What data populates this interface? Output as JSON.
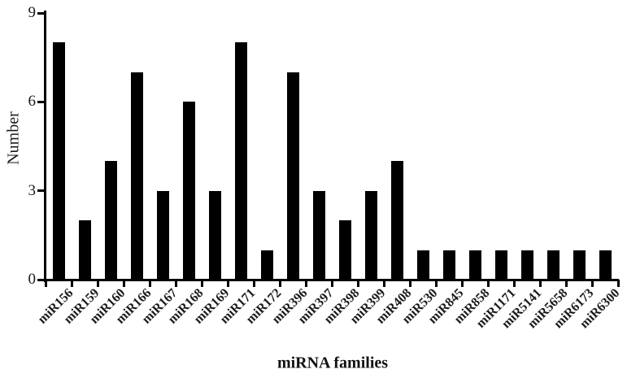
{
  "chart_data": {
    "type": "bar",
    "title": "",
    "categories": [
      "miR156",
      "miR159",
      "miR160",
      "miR166",
      "miR167",
      "miR168",
      "miR169",
      "miR171",
      "miR172",
      "miR396",
      "miR397",
      "miR398",
      "miR399",
      "miR408",
      "miR530",
      "miR845",
      "miR858",
      "miR1171",
      "miR5141",
      "miR5658",
      "miR6173",
      "miR6300"
    ],
    "values": [
      8,
      2,
      4,
      7,
      3,
      6,
      3,
      8,
      1,
      7,
      3,
      2,
      3,
      4,
      1,
      1,
      1,
      1,
      1,
      1,
      1,
      1
    ],
    "xlabel": "miRNA families",
    "ylabel": "Number",
    "ylim": [
      0,
      9
    ],
    "yticks": [
      0,
      3,
      6,
      9
    ],
    "bar_color": "#000000",
    "axis_color": "#000000",
    "background": "#ffffff",
    "grid": false,
    "legend": null
  }
}
